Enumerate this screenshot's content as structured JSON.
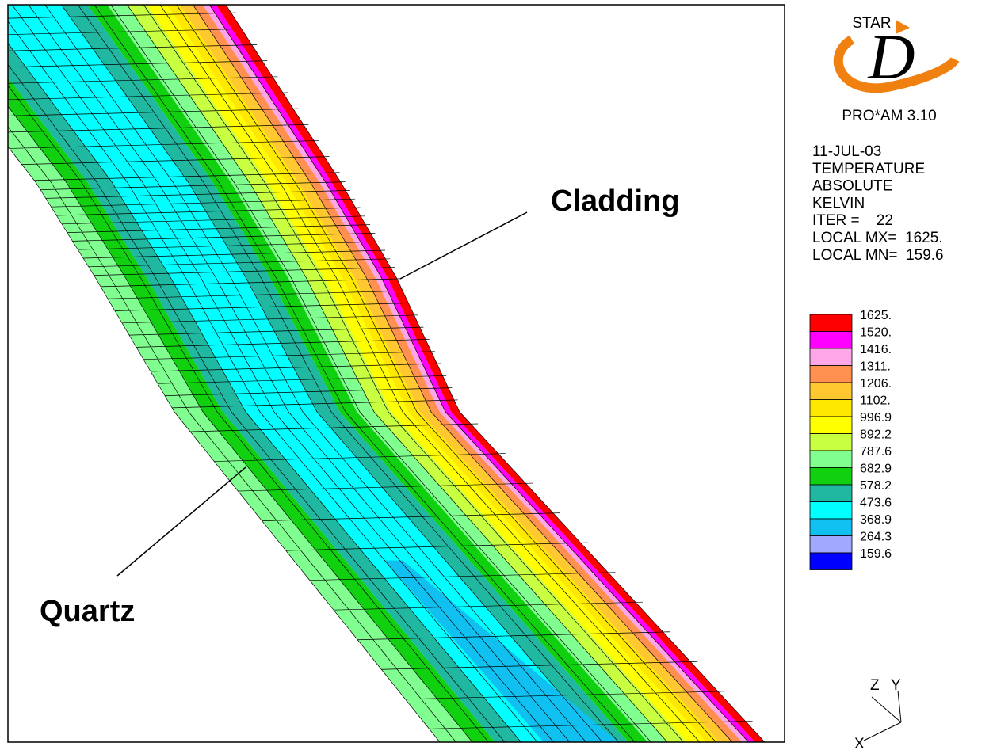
{
  "logo": {
    "name": "STAR",
    "letter": "D",
    "version": "PRO*AM 3.10"
  },
  "info": [
    "11-JUL-03",
    "TEMPERATURE",
    "ABSOLUTE",
    "KELVIN",
    "ITER =    22",
    "LOCAL MX=  1625.",
    "LOCAL MN=  159.6"
  ],
  "legend": {
    "labels": [
      "1625.",
      "1520.",
      "1416.",
      "1311.",
      "1206.",
      "1102.",
      "996.9",
      "892.2",
      "787.6",
      "682.9",
      "578.2",
      "473.6",
      "368.9",
      "264.3",
      "159.6"
    ],
    "colors": [
      "#ff0000",
      "#ff00ff",
      "#ffa6e8",
      "#ff9050",
      "#ffc830",
      "#ffe800",
      "#ffff00",
      "#c8ff40",
      "#80ff90",
      "#10d010",
      "#20b8a0",
      "#00ffff",
      "#10c0f0",
      "#a0a8ff",
      "#0000ff"
    ]
  },
  "annotations": {
    "cladding": "Cladding",
    "quartz": "Quartz"
  },
  "axes": {
    "z": "Z",
    "y": "Y",
    "x": "X"
  }
}
